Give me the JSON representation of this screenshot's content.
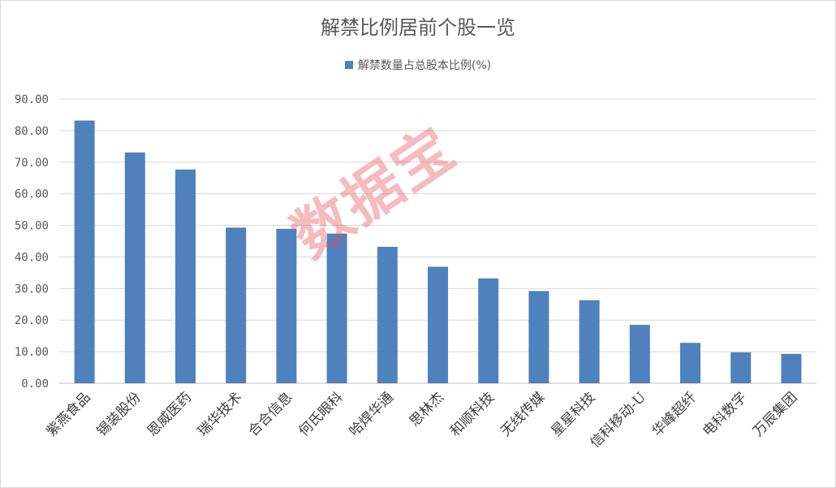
{
  "chart_data": {
    "type": "bar",
    "title": "解禁比例居前个股一览",
    "categories": [
      "紫燕食品",
      "锡装股份",
      "恩威医药",
      "瑞华技术",
      "合合信息",
      "何氏眼科",
      "哈焊华通",
      "思林杰",
      "和顺科技",
      "无线传媒",
      "星星科技",
      "信科移动-U",
      "华峰超纤",
      "电科数字",
      "万辰集团"
    ],
    "series": [
      {
        "name": "解禁数量占总股本比例(%)",
        "values": [
          83.2,
          73.1,
          67.7,
          49.3,
          48.9,
          47.4,
          43.2,
          36.9,
          33.2,
          29.2,
          26.3,
          18.5,
          12.8,
          9.8,
          9.3
        ]
      }
    ],
    "y_ticks": [
      "0.00",
      "10.00",
      "20.00",
      "30.00",
      "40.00",
      "50.00",
      "60.00",
      "70.00",
      "80.00",
      "90.00"
    ],
    "ylim": [
      0,
      90
    ],
    "grid": true,
    "legend_position": "top",
    "bar_color": "#4f81bd",
    "grid_color": "#d9d9d9"
  },
  "watermark": "数据宝"
}
